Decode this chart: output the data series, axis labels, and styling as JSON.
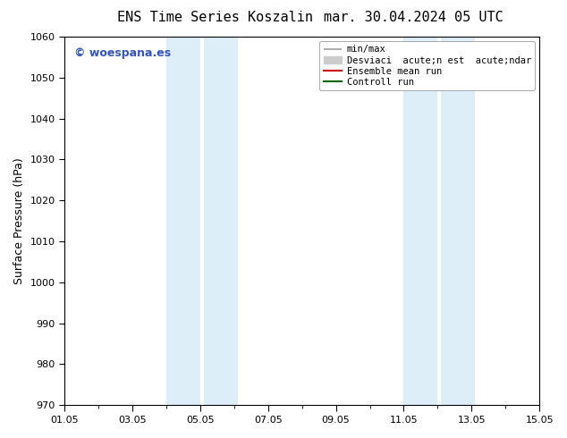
{
  "title_left": "ENS Time Series Koszalin",
  "title_right": "mar. 30.04.2024 05 UTC",
  "ylabel": "Surface Pressure (hPa)",
  "ylim": [
    970,
    1060
  ],
  "yticks": [
    970,
    980,
    990,
    1000,
    1010,
    1020,
    1030,
    1040,
    1050,
    1060
  ],
  "xlim": [
    0,
    14
  ],
  "xtick_labels": [
    "01.05",
    "03.05",
    "05.05",
    "07.05",
    "09.05",
    "11.05",
    "13.05",
    "15.05"
  ],
  "xtick_positions": [
    0,
    2,
    4,
    6,
    8,
    10,
    12,
    14
  ],
  "shade_bands": [
    {
      "x_start": 3.0,
      "x_end": 4.0
    },
    {
      "x_start": 4.1,
      "x_end": 5.1
    },
    {
      "x_start": 10.0,
      "x_end": 11.0
    },
    {
      "x_start": 11.1,
      "x_end": 12.1
    }
  ],
  "shade_color": "#ddeef8",
  "background_color": "#ffffff",
  "watermark_text": "© woespana.es",
  "watermark_color": "#3355bb",
  "legend_items": [
    {
      "label": "min/max",
      "color": "#b0b0b0",
      "lw": 1.5
    },
    {
      "label": "Desviaci  acute;n est  acute;ndar",
      "color": "#cccccc",
      "lw": 6
    },
    {
      "label": "Ensemble mean run",
      "color": "#cc0000",
      "lw": 1.5
    },
    {
      "label": "Controll run",
      "color": "#006600",
      "lw": 1.5
    }
  ],
  "title_fontsize": 11,
  "ylabel_fontsize": 9,
  "tick_fontsize": 8,
  "legend_fontsize": 7.5,
  "watermark_fontsize": 9
}
